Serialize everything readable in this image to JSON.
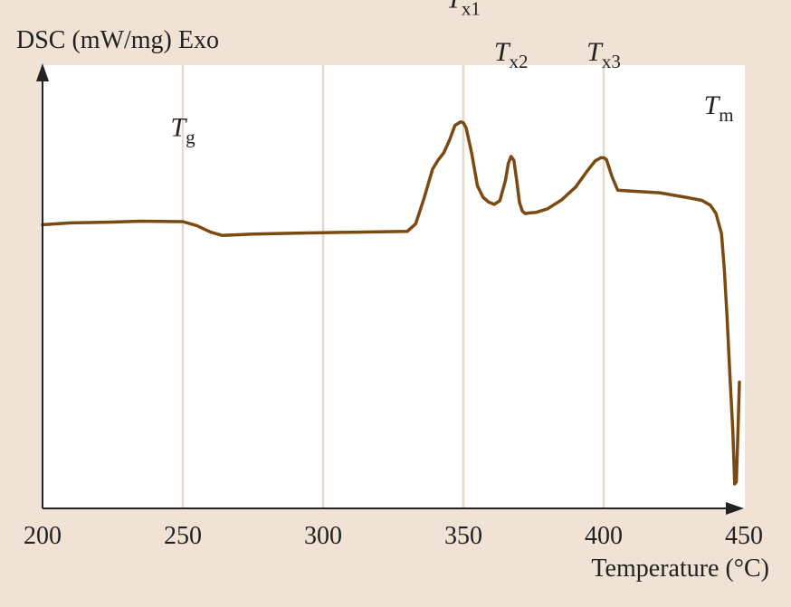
{
  "chart_data": {
    "type": "line",
    "title": "",
    "ylabel": "DSC (mW/mg) Exo",
    "xlabel": "Temperature (°C)",
    "xlim": [
      200,
      450
    ],
    "x_ticks": [
      "200",
      "250",
      "300",
      "350",
      "400",
      "450"
    ],
    "ylim": [
      0,
      100
    ],
    "grid": "vertical",
    "colors": {
      "background": "#f0e3d6",
      "plot_area": "#ffffff",
      "curve": "#7a4a12",
      "grid": "#e6d9cb",
      "axis": "#222222"
    },
    "annotations": [
      {
        "main": "T",
        "sub": "g",
        "x": 250,
        "y": 84
      },
      {
        "main": "T",
        "sub": "x1",
        "x": 350,
        "y": 113
      },
      {
        "main": "T",
        "sub": "x2",
        "x": 367,
        "y": 101
      },
      {
        "main": "T",
        "sub": "x3",
        "x": 400,
        "y": 101
      },
      {
        "main": "T",
        "sub": "m",
        "x": 441,
        "y": 89
      }
    ],
    "series": [
      {
        "name": "",
        "x": [
          200,
          205,
          210,
          225,
          235,
          250,
          255,
          260,
          264,
          268,
          275,
          290,
          300,
          320,
          330,
          333,
          336,
          339,
          341,
          343,
          345,
          347,
          349,
          350,
          351,
          353,
          355,
          357,
          359,
          361,
          363,
          365,
          366,
          367,
          368,
          369,
          370,
          371,
          372,
          374,
          376,
          380,
          385,
          390,
          394,
          397,
          399,
          400,
          401,
          403,
          405,
          410,
          420,
          430,
          435,
          438,
          440,
          442,
          443,
          444,
          445,
          446,
          446.7,
          447.3,
          448,
          448.4
        ],
        "y": [
          64,
          64.2,
          64.4,
          64.6,
          64.8,
          64.7,
          63.8,
          62.3,
          61.6,
          61.7,
          61.9,
          62.1,
          62.2,
          62.4,
          62.5,
          64.2,
          70,
          76.5,
          78.6,
          80.2,
          83,
          86.4,
          87.2,
          87,
          85.8,
          80,
          72.8,
          70.2,
          69.1,
          68.6,
          69.4,
          74,
          77.8,
          79.4,
          78.5,
          74,
          69,
          67.1,
          66.5,
          66.7,
          66.8,
          67.6,
          69.6,
          72.5,
          76,
          78.4,
          79.1,
          79.1,
          78.7,
          74.8,
          71.8,
          71.6,
          71.2,
          70.1,
          69.5,
          68.4,
          66.6,
          62,
          54,
          43,
          30,
          18,
          5.5,
          6,
          20,
          28.5
        ]
      }
    ]
  }
}
